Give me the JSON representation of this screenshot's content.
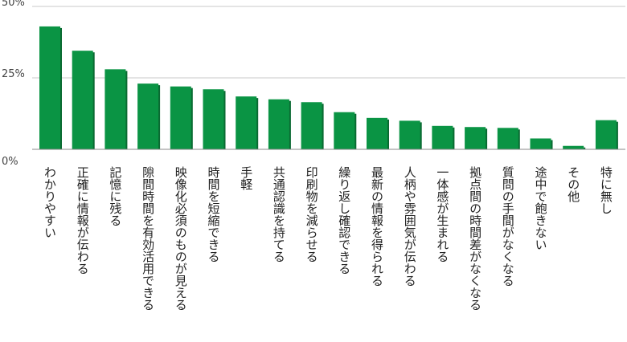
{
  "chart_data": {
    "type": "bar",
    "title": "",
    "xlabel": "",
    "ylabel": "",
    "ylim": [
      0,
      50
    ],
    "yticks": [
      "0%",
      "25%",
      "50%"
    ],
    "ytick_values": [
      0,
      25,
      50
    ],
    "grid": true,
    "bar_color": "#0a9444",
    "bar_shadow_color": "#0a6a32",
    "categories": [
      "わかりやすい",
      "正確に情報が伝わる",
      "記憶に残る",
      "隙間時間を有効活用できる",
      "映像化必須のものが見える",
      "時間を短縮できる",
      "手軽",
      "共通認識を持てる",
      "印刷物を減らせる",
      "繰り返し確認できる",
      "最新の情報を得られる",
      "人柄や雰囲気が伝わる",
      "一体感が生まれる",
      "拠点間の時間差がなくなる",
      "質問の手間がなくなる",
      "途中で飽きない",
      "その他",
      "特に無し"
    ],
    "values": [
      43,
      34.5,
      28,
      23,
      22,
      21,
      18.5,
      17.5,
      16.5,
      13,
      11,
      10,
      8.2,
      7.8,
      7.5,
      3.8,
      1.2,
      10.2
    ]
  }
}
